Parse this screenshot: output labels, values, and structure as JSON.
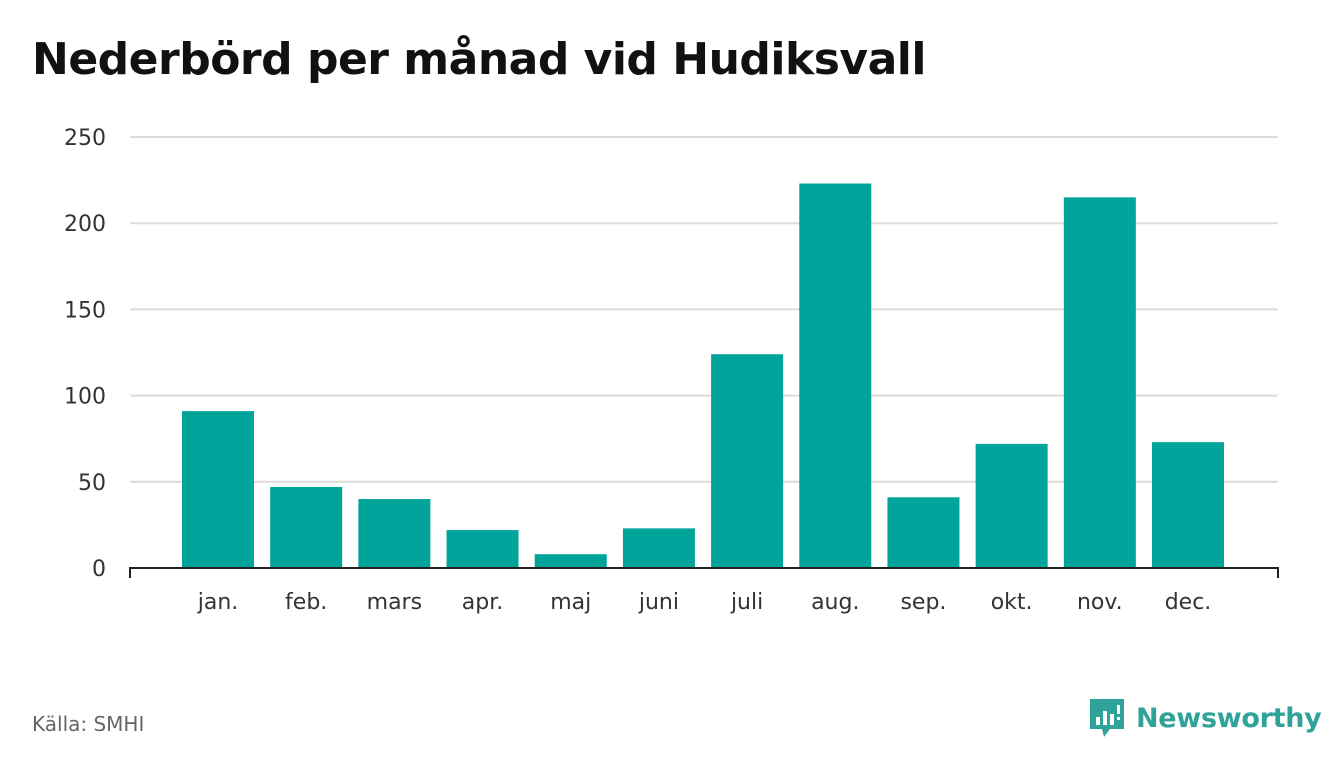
{
  "title": "Nederbörd per månad vid Hudiksvall",
  "source": "Källa: SMHI",
  "brand": {
    "name": "Newsworthy",
    "icon": "newsworthy-logo-icon"
  },
  "colors": {
    "bar": "#00a49b",
    "grid": "#dcdcdc",
    "axis": "#222222",
    "brand": "#2fa39a"
  },
  "chart_data": {
    "type": "bar",
    "title": "Nederbörd per månad vid Hudiksvall",
    "xlabel": "",
    "ylabel": "",
    "categories": [
      "jan.",
      "feb.",
      "mars",
      "apr.",
      "maj",
      "juni",
      "juli",
      "aug.",
      "sep.",
      "okt.",
      "nov.",
      "dec."
    ],
    "values": [
      91,
      47,
      40,
      22,
      8,
      23,
      124,
      223,
      41,
      72,
      215,
      73
    ],
    "ylim": [
      0,
      250
    ],
    "yticks": [
      0,
      50,
      100,
      150,
      200,
      250
    ],
    "grid": true,
    "legend": "none"
  }
}
